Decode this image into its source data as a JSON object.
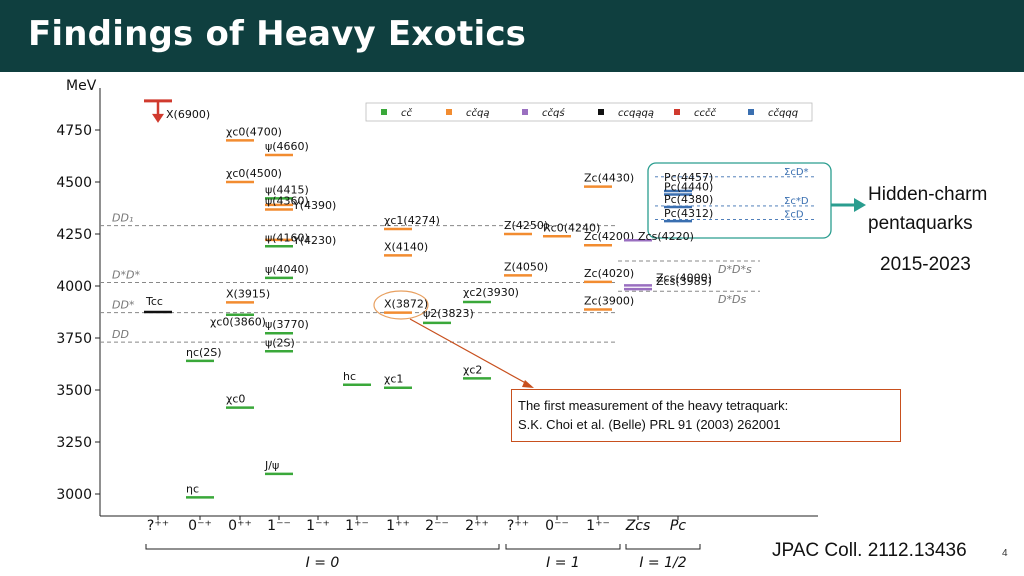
{
  "slide": {
    "title": "Findings of Heavy Exotics",
    "pentaquark_label_1": "Hidden-charm",
    "pentaquark_label_2": "pentaquarks",
    "years": "2015-2023",
    "callout_line1": "The first measurement of the heavy tetraquark:",
    "callout_line2": "S.K. Choi et al. (Belle) PRL 91 (2003) 262001",
    "reference": "JPAC Coll. 2112.13436",
    "page_number": "4"
  },
  "colors": {
    "title_bg": "#0f3f3f",
    "accent_teal": "#2a9d8f",
    "callout_border": "#c8501e"
  },
  "chart_data": {
    "type": "level-diagram",
    "ylabel": "MeV",
    "ylim": [
      2900,
      5000
    ],
    "yticks": [
      3000,
      3250,
      3500,
      3750,
      4000,
      4250,
      4500,
      4750
    ],
    "columns": [
      "?⁺⁺",
      "0⁻⁺",
      "0⁺⁺",
      "1⁻⁻",
      "1⁻⁺",
      "1⁺⁻",
      "1⁺⁺",
      "2⁻⁻",
      "2⁺⁺",
      "?⁺⁺",
      "0⁻⁻",
      "1⁺⁻",
      "Z_cs",
      "P_c"
    ],
    "column_labels": [
      "?⁺⁺",
      "0⁻⁺",
      "0⁺⁺",
      "1⁻⁻",
      "1⁻⁺",
      "1⁺⁻",
      "1⁺⁺",
      "2⁻⁻",
      "2⁺⁺",
      "?⁺⁺",
      "0⁻⁻",
      "1⁺⁻",
      "Zcs",
      "Pc"
    ],
    "isospin_groups": [
      {
        "label": "I = 0",
        "from": 0,
        "to": 8
      },
      {
        "label": "I = 1",
        "from": 9,
        "to": 11
      },
      {
        "label": "I = 1/2",
        "from": 12,
        "to": 13
      }
    ],
    "legend": [
      {
        "key": "ccbar",
        "label": "cč",
        "color": "#3aa83a"
      },
      {
        "key": "ccqq",
        "label": "cčqą",
        "color": "#f28c30"
      },
      {
        "key": "ccqs",
        "label": "cčqś",
        "color": "#9a6fc0"
      },
      {
        "key": "ccqq_open",
        "label": "ccqąqą",
        "color": "#111111"
      },
      {
        "key": "cccc",
        "label": "ccčč",
        "color": "#d03a2e"
      },
      {
        "key": "ccqqq",
        "label": "cčqqq",
        "color": "#3a6fb0"
      }
    ],
    "thresholds": [
      {
        "label": "DD₁",
        "mass": 4290
      },
      {
        "label": "D*D*",
        "mass": 4017
      },
      {
        "label": "DD*",
        "mass": 3872
      },
      {
        "label": "DD",
        "mass": 3730
      }
    ],
    "strange_thresholds": [
      {
        "label": "D*D*s",
        "mass": 4120
      },
      {
        "label": "D*Ds",
        "mass": 3975
      }
    ],
    "pc_thresholds": [
      {
        "label": "ΣcD*",
        "mass": 4525
      },
      {
        "label": "Σc*D",
        "mass": 4385
      },
      {
        "label": "ΣcD",
        "mass": 4320
      }
    ],
    "states": [
      {
        "col": 0,
        "mass": 4890,
        "kind": "cccc",
        "label": "X(6900)"
      },
      {
        "col": 0,
        "mass": 3875,
        "kind": "ccqq_open",
        "label": "Tcc"
      },
      {
        "col": 1,
        "mass": 3640,
        "kind": "ccbar",
        "label": "ηc(2S)"
      },
      {
        "col": 1,
        "mass": 2984,
        "kind": "ccbar",
        "label": "ηc"
      },
      {
        "col": 2,
        "mass": 4700,
        "kind": "ccqq",
        "label": "χc0(4700)"
      },
      {
        "col": 2,
        "mass": 4500,
        "kind": "ccqq",
        "label": "χc0(4500)"
      },
      {
        "col": 2,
        "mass": 3921,
        "kind": "ccqq",
        "label": "X(3915)"
      },
      {
        "col": 2,
        "mass": 3862,
        "kind": "ccbar",
        "label": "χc0(3860)"
      },
      {
        "col": 2,
        "mass": 3415,
        "kind": "ccbar",
        "label": "χc0"
      },
      {
        "col": 3,
        "mass": 4630,
        "kind": "ccqq",
        "label": "ψ(4660)"
      },
      {
        "col": 3,
        "mass": 4421,
        "kind": "ccbar",
        "label": "ψ(4415)"
      },
      {
        "col": 3,
        "mass": 4390,
        "kind": "ccqq",
        "label": "Y(4390)"
      },
      {
        "col": 3,
        "mass": 4368,
        "kind": "ccqq",
        "label": "ψ(4360)"
      },
      {
        "col": 3,
        "mass": 4222,
        "kind": "ccqq",
        "label": "Y(4230)"
      },
      {
        "col": 3,
        "mass": 4191,
        "kind": "ccbar",
        "label": "ψ(4160)"
      },
      {
        "col": 3,
        "mass": 4039,
        "kind": "ccbar",
        "label": "ψ(4040)"
      },
      {
        "col": 3,
        "mass": 3773,
        "kind": "ccbar",
        "label": "ψ(3770)"
      },
      {
        "col": 3,
        "mass": 3686,
        "kind": "ccbar",
        "label": "ψ(2S)"
      },
      {
        "col": 3,
        "mass": 3097,
        "kind": "ccbar",
        "label": "J/ψ"
      },
      {
        "col": 5,
        "mass": 3525,
        "kind": "ccbar",
        "label": "hc"
      },
      {
        "col": 6,
        "mass": 4274,
        "kind": "ccqq",
        "label": "χc1(4274)"
      },
      {
        "col": 6,
        "mass": 4147,
        "kind": "ccqq",
        "label": "X(4140)"
      },
      {
        "col": 6,
        "mass": 3872,
        "kind": "ccqq",
        "label": "X(3872)"
      },
      {
        "col": 6,
        "mass": 3511,
        "kind": "ccbar",
        "label": "χc1"
      },
      {
        "col": 7,
        "mass": 3823,
        "kind": "ccbar",
        "label": "ψ2(3823)"
      },
      {
        "col": 8,
        "mass": 3923,
        "kind": "ccbar",
        "label": "χc2(3930)"
      },
      {
        "col": 8,
        "mass": 3556,
        "kind": "ccbar",
        "label": "χc2"
      },
      {
        "col": 9,
        "mass": 4250,
        "kind": "ccqq",
        "label": "Z(4250)"
      },
      {
        "col": 9,
        "mass": 4051,
        "kind": "ccqq",
        "label": "Z(4050)"
      },
      {
        "col": 10,
        "mass": 4239,
        "kind": "ccqq",
        "label": "Rc0(4240)"
      },
      {
        "col": 11,
        "mass": 4478,
        "kind": "ccqq",
        "label": "Zc(4430)"
      },
      {
        "col": 11,
        "mass": 4196,
        "kind": "ccqq",
        "label": "Zc(4200)"
      },
      {
        "col": 11,
        "mass": 4020,
        "kind": "ccqq",
        "label": "Zc(4020)"
      },
      {
        "col": 11,
        "mass": 3887,
        "kind": "ccqq",
        "label": "Zc(3900)"
      },
      {
        "col": 12,
        "mass": 4220,
        "kind": "ccqs",
        "label": "Zcs(4220)"
      },
      {
        "col": 12,
        "mass": 4003,
        "kind": "ccqs",
        "label": "Zcs(4000)"
      },
      {
        "col": 12,
        "mass": 3985,
        "kind": "ccqs",
        "label": "Zcs(3985)"
      },
      {
        "col": 13,
        "mass": 4457,
        "kind": "ccqqq",
        "label": "Pc(4457)"
      },
      {
        "col": 13,
        "mass": 4440,
        "kind": "ccqqq",
        "label": "Pc(4440)"
      },
      {
        "col": 13,
        "mass": 4380,
        "kind": "ccqqq",
        "label": "Pc(4380)"
      },
      {
        "col": 13,
        "mass": 4312,
        "kind": "ccqqq",
        "label": "Pc(4312)"
      }
    ]
  }
}
